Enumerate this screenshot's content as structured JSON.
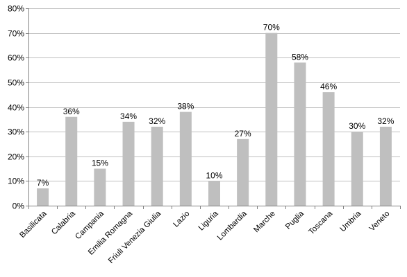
{
  "chart_data": {
    "type": "bar",
    "categories": [
      "Basilicata",
      "Calabria",
      "Campania",
      "Emilia Romagna",
      "Friuli Venezia Giulia",
      "Lazio",
      "Liguria",
      "Lombardia",
      "Marche",
      "Puglia",
      "Toscana",
      "Umbria",
      "Veneto"
    ],
    "values": [
      7,
      36,
      15,
      34,
      32,
      38,
      10,
      27,
      70,
      58,
      46,
      30,
      32
    ],
    "data_labels": [
      "7%",
      "36%",
      "15%",
      "34%",
      "32%",
      "38%",
      "10%",
      "27%",
      "70%",
      "58%",
      "46%",
      "30%",
      "32%"
    ],
    "y_ticks": [
      0,
      10,
      20,
      30,
      40,
      50,
      60,
      70,
      80
    ],
    "y_tick_labels": [
      "0%",
      "10%",
      "20%",
      "30%",
      "40%",
      "50%",
      "60%",
      "70%",
      "80%"
    ],
    "ylim": [
      0,
      80
    ],
    "title": "",
    "xlabel": "",
    "ylabel": "",
    "grid": true,
    "legend": "none",
    "bar_color": "#bfbfbf",
    "grid_color": "#bfbfbf",
    "axis_color": "#808080"
  }
}
